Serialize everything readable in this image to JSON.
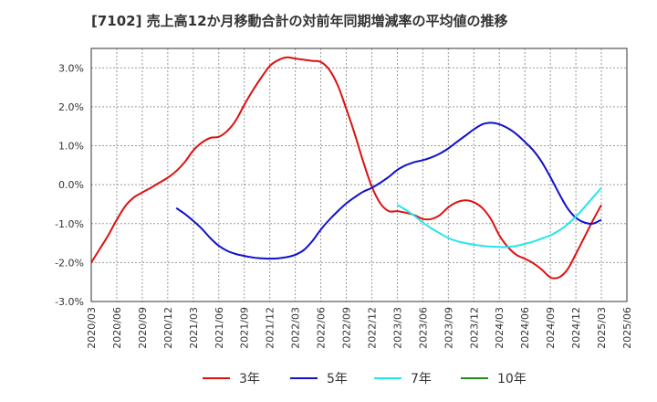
{
  "title": "[7102]  売上高12か月移動合計の対前年同期増減率の平均値の推移",
  "chart_data": {
    "type": "line",
    "title": "[7102]  売上高12か月移動合計の対前年同期増減率の平均値の推移",
    "xlabel": "",
    "ylabel": "",
    "ylim": [
      -3.0,
      3.5
    ],
    "xlim": [
      "2020-03",
      "2025-06"
    ],
    "yticks": [
      {
        "v": 3.0,
        "label": "3.0%"
      },
      {
        "v": 2.0,
        "label": "2.0%"
      },
      {
        "v": 1.0,
        "label": "1.0%"
      },
      {
        "v": 0.0,
        "label": "0.0%"
      },
      {
        "v": -1.0,
        "label": "-1.0%"
      },
      {
        "v": -2.0,
        "label": "-2.0%"
      },
      {
        "v": -3.0,
        "label": "-3.0%"
      }
    ],
    "xticks": [
      "2020/03",
      "2020/06",
      "2020/09",
      "2020/12",
      "2021/03",
      "2021/06",
      "2021/09",
      "2021/12",
      "2022/03",
      "2022/06",
      "2022/09",
      "2022/12",
      "2023/03",
      "2023/06",
      "2023/09",
      "2023/12",
      "2024/03",
      "2024/06",
      "2024/09",
      "2024/12",
      "2025/03",
      "2025/06"
    ],
    "grid": true,
    "legend_position": "bottom",
    "series": [
      {
        "name": "3年",
        "color": "#dd1111",
        "points": [
          [
            "2020-03",
            -2.0
          ],
          [
            "2020-04",
            -1.65
          ],
          [
            "2020-05",
            -1.3
          ],
          [
            "2020-06",
            -0.9
          ],
          [
            "2020-07",
            -0.55
          ],
          [
            "2020-08",
            -0.33
          ],
          [
            "2020-09",
            -0.2
          ],
          [
            "2020-10",
            -0.08
          ],
          [
            "2020-11",
            0.05
          ],
          [
            "2020-12",
            0.18
          ],
          [
            "2021-01",
            0.35
          ],
          [
            "2021-02",
            0.58
          ],
          [
            "2021-03",
            0.88
          ],
          [
            "2021-04",
            1.08
          ],
          [
            "2021-05",
            1.2
          ],
          [
            "2021-06",
            1.23
          ],
          [
            "2021-07",
            1.38
          ],
          [
            "2021-08",
            1.65
          ],
          [
            "2021-09",
            2.05
          ],
          [
            "2021-10",
            2.42
          ],
          [
            "2021-11",
            2.75
          ],
          [
            "2021-12",
            3.05
          ],
          [
            "2022-01",
            3.2
          ],
          [
            "2022-02",
            3.27
          ],
          [
            "2022-03",
            3.24
          ],
          [
            "2022-04",
            3.21
          ],
          [
            "2022-05",
            3.18
          ],
          [
            "2022-06",
            3.15
          ],
          [
            "2022-07",
            2.95
          ],
          [
            "2022-08",
            2.55
          ],
          [
            "2022-09",
            1.95
          ],
          [
            "2022-10",
            1.3
          ],
          [
            "2022-11",
            0.58
          ],
          [
            "2022-12",
            -0.05
          ],
          [
            "2023-01",
            -0.48
          ],
          [
            "2023-02",
            -0.68
          ],
          [
            "2023-03",
            -0.68
          ],
          [
            "2023-04",
            -0.72
          ],
          [
            "2023-05",
            -0.78
          ],
          [
            "2023-06",
            -0.88
          ],
          [
            "2023-07",
            -0.88
          ],
          [
            "2023-08",
            -0.78
          ],
          [
            "2023-09",
            -0.58
          ],
          [
            "2023-10",
            -0.45
          ],
          [
            "2023-11",
            -0.4
          ],
          [
            "2023-12",
            -0.45
          ],
          [
            "2024-01",
            -0.6
          ],
          [
            "2024-02",
            -0.88
          ],
          [
            "2024-03",
            -1.3
          ],
          [
            "2024-04",
            -1.6
          ],
          [
            "2024-05",
            -1.8
          ],
          [
            "2024-06",
            -1.9
          ],
          [
            "2024-07",
            -2.02
          ],
          [
            "2024-08",
            -2.18
          ],
          [
            "2024-09",
            -2.38
          ],
          [
            "2024-10",
            -2.38
          ],
          [
            "2024-11",
            -2.18
          ],
          [
            "2024-12",
            -1.78
          ],
          [
            "2025-01",
            -1.35
          ],
          [
            "2025-02",
            -0.92
          ],
          [
            "2025-03",
            -0.52
          ]
        ]
      },
      {
        "name": "5年",
        "color": "#1111cc",
        "points": [
          [
            "2021-01",
            -0.6
          ],
          [
            "2021-02",
            -0.75
          ],
          [
            "2021-03",
            -0.93
          ],
          [
            "2021-04",
            -1.13
          ],
          [
            "2021-05",
            -1.37
          ],
          [
            "2021-06",
            -1.57
          ],
          [
            "2021-07",
            -1.7
          ],
          [
            "2021-08",
            -1.78
          ],
          [
            "2021-09",
            -1.83
          ],
          [
            "2021-10",
            -1.87
          ],
          [
            "2021-11",
            -1.89
          ],
          [
            "2021-12",
            -1.9
          ],
          [
            "2022-01",
            -1.89
          ],
          [
            "2022-02",
            -1.86
          ],
          [
            "2022-03",
            -1.8
          ],
          [
            "2022-04",
            -1.68
          ],
          [
            "2022-05",
            -1.45
          ],
          [
            "2022-06",
            -1.15
          ],
          [
            "2022-07",
            -0.9
          ],
          [
            "2022-08",
            -0.68
          ],
          [
            "2022-09",
            -0.48
          ],
          [
            "2022-10",
            -0.32
          ],
          [
            "2022-11",
            -0.18
          ],
          [
            "2022-12",
            -0.08
          ],
          [
            "2023-01",
            0.05
          ],
          [
            "2023-02",
            0.2
          ],
          [
            "2023-03",
            0.38
          ],
          [
            "2023-04",
            0.5
          ],
          [
            "2023-05",
            0.58
          ],
          [
            "2023-06",
            0.63
          ],
          [
            "2023-07",
            0.7
          ],
          [
            "2023-08",
            0.8
          ],
          [
            "2023-09",
            0.93
          ],
          [
            "2023-10",
            1.1
          ],
          [
            "2023-11",
            1.26
          ],
          [
            "2023-12",
            1.42
          ],
          [
            "2024-01",
            1.55
          ],
          [
            "2024-02",
            1.59
          ],
          [
            "2024-03",
            1.55
          ],
          [
            "2024-04",
            1.45
          ],
          [
            "2024-05",
            1.3
          ],
          [
            "2024-06",
            1.1
          ],
          [
            "2024-07",
            0.88
          ],
          [
            "2024-08",
            0.58
          ],
          [
            "2024-09",
            0.2
          ],
          [
            "2024-10",
            -0.22
          ],
          [
            "2024-11",
            -0.6
          ],
          [
            "2024-12",
            -0.85
          ],
          [
            "2025-01",
            -0.97
          ],
          [
            "2025-02",
            -1.0
          ],
          [
            "2025-03",
            -0.9
          ]
        ]
      },
      {
        "name": "7年",
        "color": "#22e6ee",
        "points": [
          [
            "2023-03",
            -0.52
          ],
          [
            "2023-04",
            -0.65
          ],
          [
            "2023-05",
            -0.8
          ],
          [
            "2023-06",
            -0.97
          ],
          [
            "2023-07",
            -1.12
          ],
          [
            "2023-08",
            -1.25
          ],
          [
            "2023-09",
            -1.37
          ],
          [
            "2023-10",
            -1.45
          ],
          [
            "2023-11",
            -1.5
          ],
          [
            "2023-12",
            -1.54
          ],
          [
            "2024-01",
            -1.57
          ],
          [
            "2024-02",
            -1.59
          ],
          [
            "2024-03",
            -1.6
          ],
          [
            "2024-04",
            -1.6
          ],
          [
            "2024-05",
            -1.57
          ],
          [
            "2024-06",
            -1.52
          ],
          [
            "2024-07",
            -1.46
          ],
          [
            "2024-08",
            -1.38
          ],
          [
            "2024-09",
            -1.3
          ],
          [
            "2024-10",
            -1.18
          ],
          [
            "2024-11",
            -1.02
          ],
          [
            "2024-12",
            -0.82
          ],
          [
            "2025-01",
            -0.58
          ],
          [
            "2025-02",
            -0.33
          ],
          [
            "2025-03",
            -0.08
          ]
        ]
      },
      {
        "name": "10年",
        "color": "#228822",
        "points": []
      }
    ]
  }
}
